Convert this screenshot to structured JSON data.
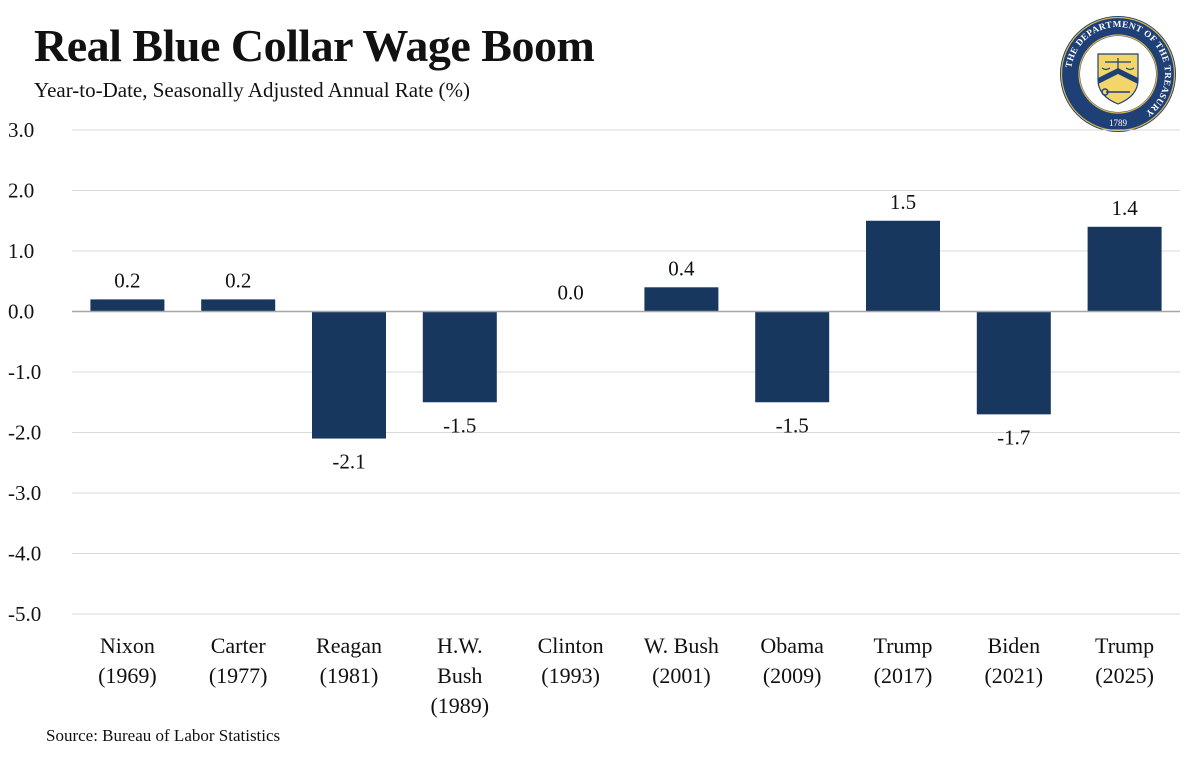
{
  "header": {
    "title": "Real Blue Collar Wage Boom",
    "subtitle": "Year-to-Date, Seasonally Adjusted Annual Rate (%)"
  },
  "footer": {
    "source": "Source: Bureau of Labor Statistics"
  },
  "seal": {
    "ring_text": "THE DEPARTMENT OF THE TREASURY",
    "year": "1789",
    "colors": {
      "ring": "#1f3f77",
      "gold": "#d8b54a",
      "shield": "#f2d66b"
    }
  },
  "colors": {
    "bar": "#17375e",
    "grid": "#d9d9d9",
    "axis": "#a6a6a6",
    "text": "#111111"
  },
  "chart_data": {
    "type": "bar",
    "title": "Real Blue Collar Wage Boom",
    "subtitle": "Year-to-Date, Seasonally Adjusted Annual Rate (%)",
    "xlabel": "",
    "ylabel": "",
    "ylim": [
      -5,
      3
    ],
    "yticks": [
      3,
      2,
      1,
      0,
      -1,
      -2,
      -3,
      -4,
      -5
    ],
    "ytick_labels": [
      "3.0",
      "2.0",
      "1.0",
      "0.0",
      "-1.0",
      "-2.0",
      "-3.0",
      "-4.0",
      "-5.0"
    ],
    "grid": true,
    "categories": [
      [
        "Nixon",
        "(1969)"
      ],
      [
        "Carter",
        "(1977)"
      ],
      [
        "Reagan",
        "(1981)"
      ],
      [
        "H.W.",
        "Bush",
        "(1989)"
      ],
      [
        "Clinton",
        "(1993)"
      ],
      [
        "W. Bush",
        "(2001)"
      ],
      [
        "Obama",
        "(2009)"
      ],
      [
        "Trump",
        "(2017)"
      ],
      [
        "Biden",
        "(2021)"
      ],
      [
        "Trump",
        "(2025)"
      ]
    ],
    "values": [
      0.2,
      0.2,
      -2.1,
      -1.5,
      0.0,
      0.4,
      -1.5,
      1.5,
      -1.7,
      1.4
    ],
    "value_labels": [
      "0.2",
      "0.2",
      "-2.1",
      "-1.5",
      "0.0",
      "0.4",
      "-1.5",
      "1.5",
      "-1.7",
      "1.4"
    ]
  }
}
